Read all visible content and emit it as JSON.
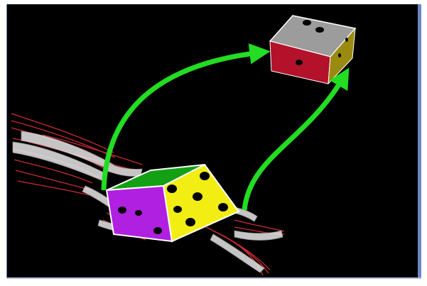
{
  "scene": {
    "colors": {
      "background": "#000000",
      "arrow": "#22dd22",
      "target_top": "#9c9c9c",
      "target_front": "#b3122a",
      "target_side": "#9a8a10",
      "die_top": "#14a014",
      "die_left": "#b020e0",
      "die_right": "#f2ee14",
      "pip": "#000000",
      "finger_outline": "#e0303a",
      "finger_fill": "#e8e8e8"
    },
    "icons": [
      "target-die-icon",
      "held-die-icon",
      "robotic-hand-icon",
      "arrow-icon"
    ]
  }
}
